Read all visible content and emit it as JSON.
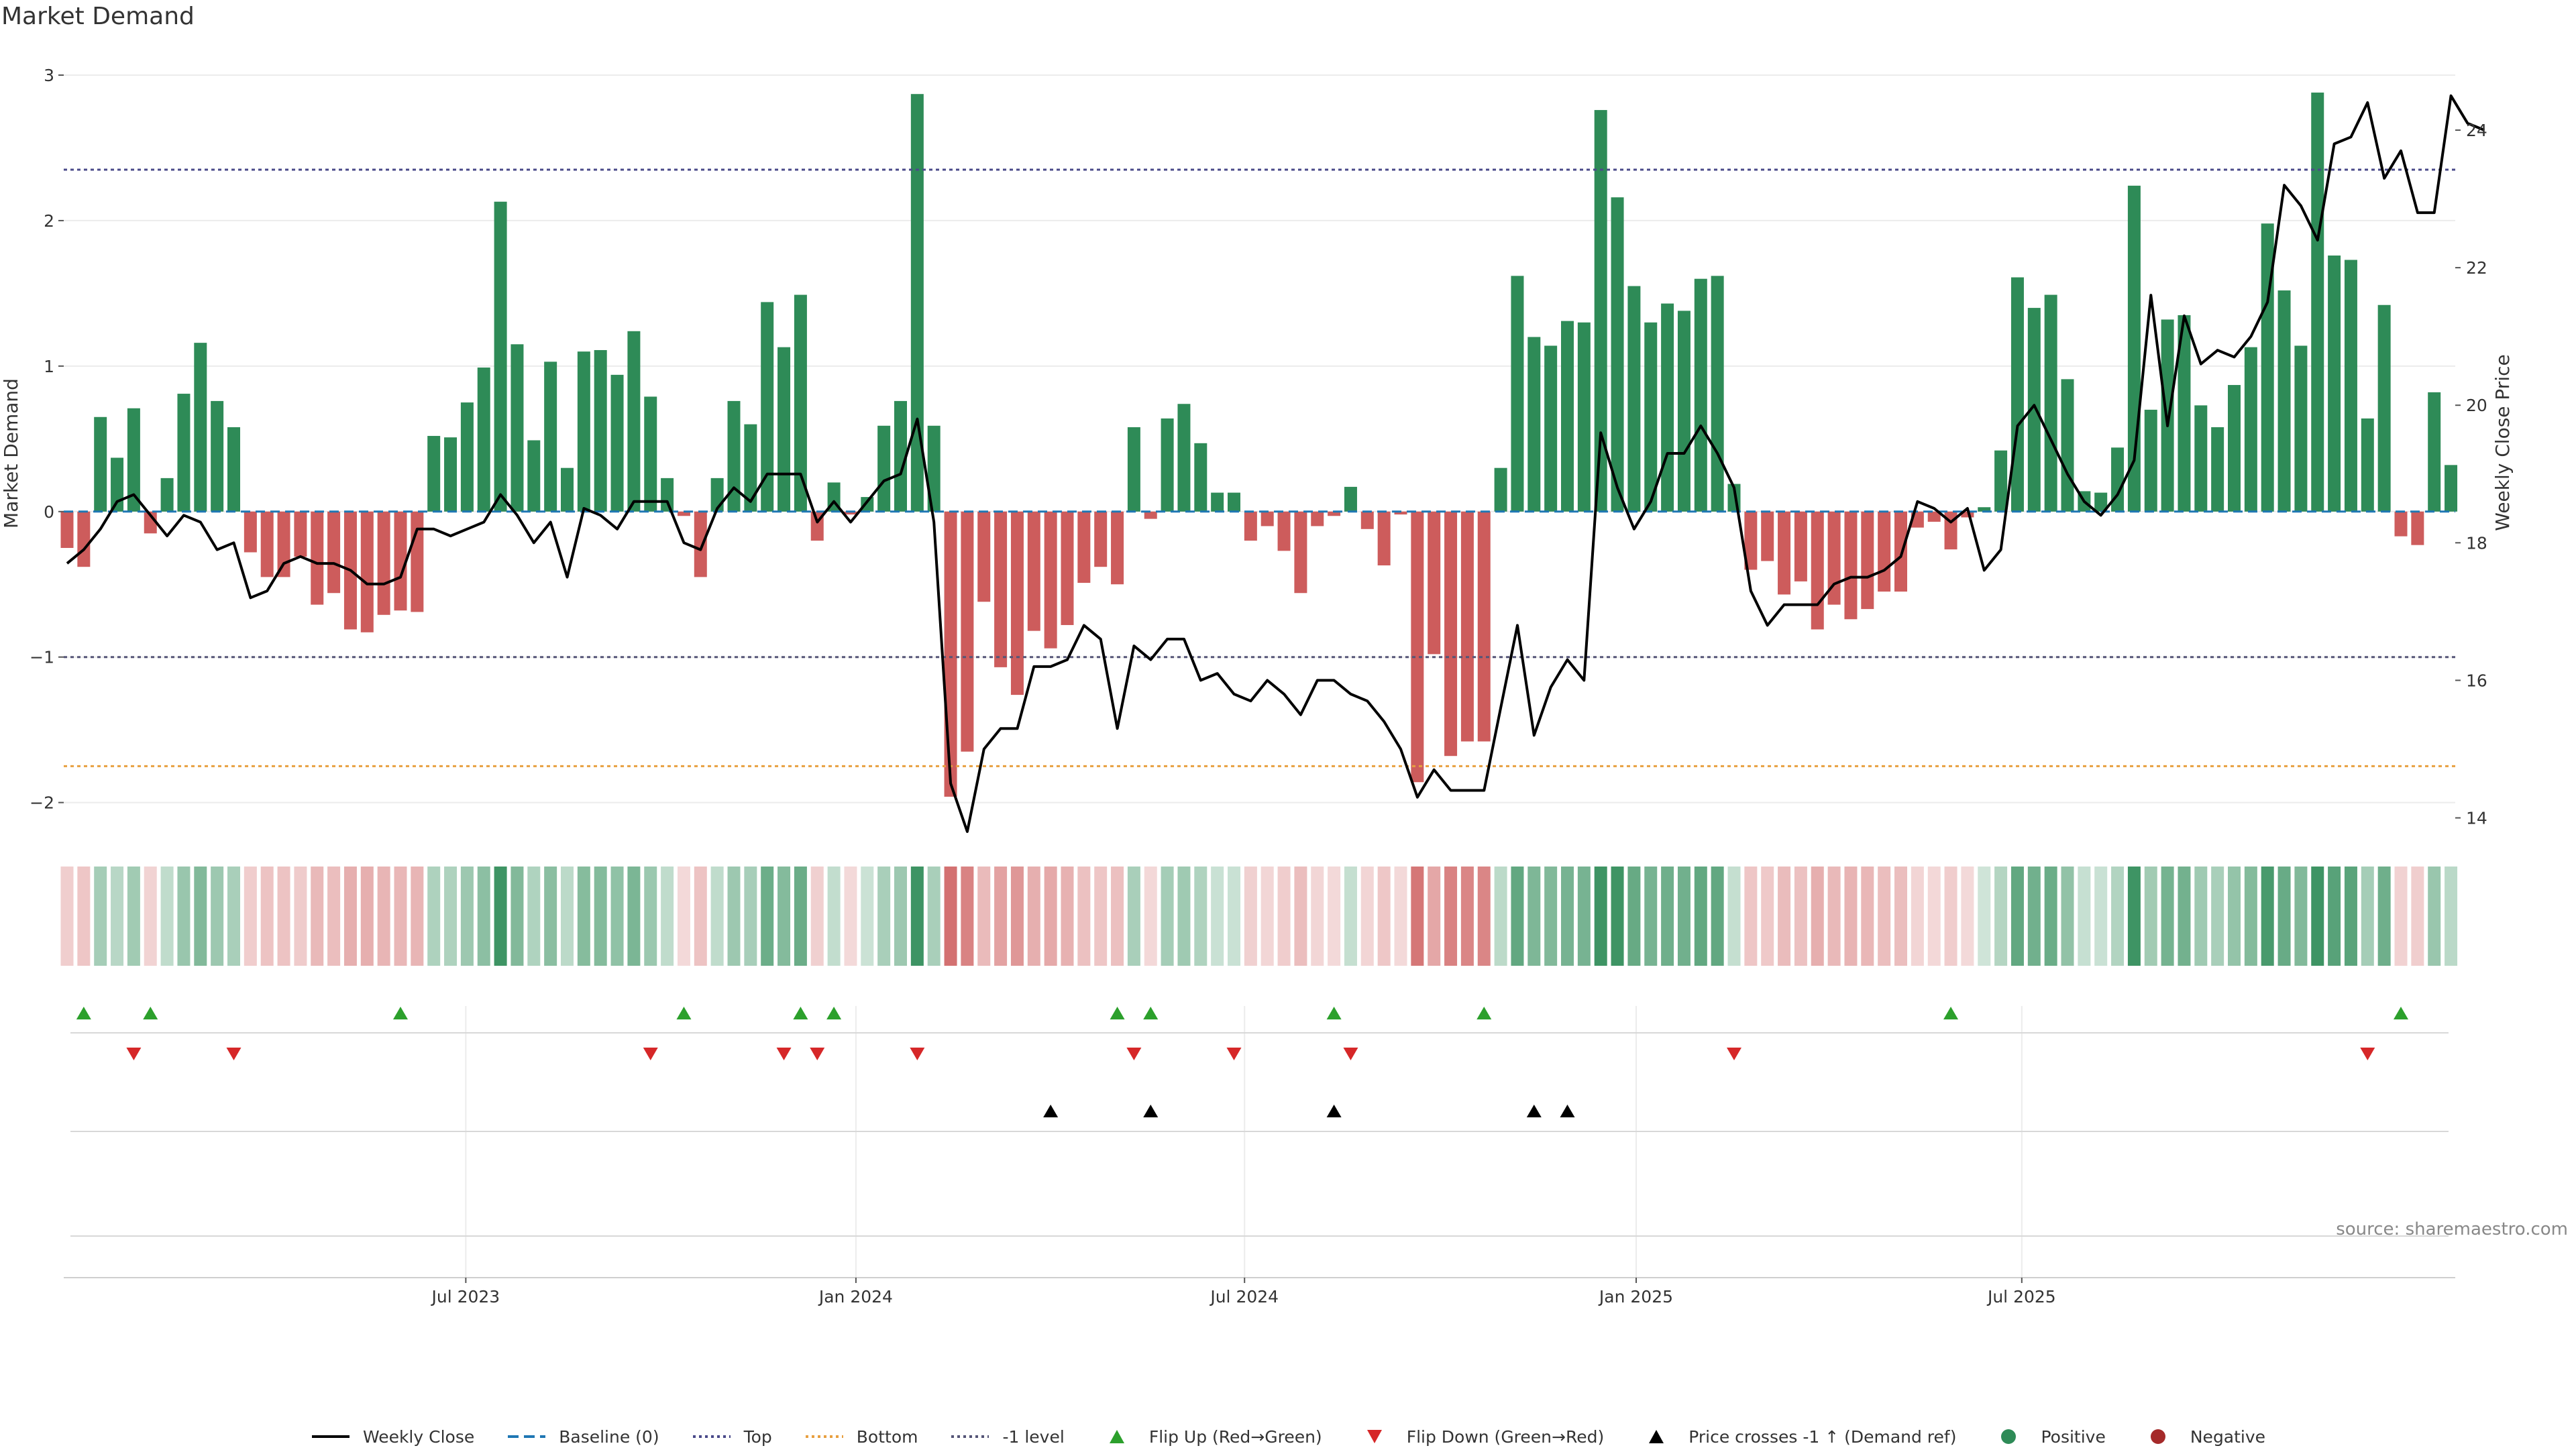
{
  "title": "Market Demand",
  "source_text": "source: sharemaestro.com",
  "colors": {
    "positive": "#2e8b57",
    "negative": "#cd5c5c",
    "price_line": "#000000",
    "top_line": "#4a4a8a",
    "bottom_line": "#e8a040",
    "minus1_line": "#555577",
    "flip_up": "#2ca02c",
    "flip_down": "#d62728",
    "cross_marker": "#000000"
  },
  "legend": [
    {
      "label": "Weekly Close",
      "kind": "line",
      "color": "#000000"
    },
    {
      "label": "Baseline (0)",
      "kind": "dash",
      "color": "#1f77b4"
    },
    {
      "label": "Top",
      "kind": "dot",
      "color": "#4a4a8a"
    },
    {
      "label": "Bottom",
      "kind": "dot",
      "color": "#e8a040"
    },
    {
      "label": "-1 level",
      "kind": "dot",
      "color": "#555577"
    },
    {
      "label": "Flip Up (Red→Green)",
      "kind": "tri-up",
      "color": "#2ca02c"
    },
    {
      "label": "Flip Down (Green→Red)",
      "kind": "tri-down",
      "color": "#d62728"
    },
    {
      "label": "Price crosses -1 ↑ (Demand ref)",
      "kind": "tri-up",
      "color": "#000000"
    },
    {
      "label": "Positive",
      "kind": "circle",
      "color": "#2e8b57"
    },
    {
      "label": "Negative",
      "kind": "circle",
      "color": "#a52a2a"
    }
  ],
  "chart_data": {
    "type": "bar",
    "title": "Market Demand",
    "ylabel": "Market Demand",
    "y2label": "Weekly Close Price",
    "ylim": [
      -2.2,
      3.0
    ],
    "y2lim": [
      13.8,
      24.8
    ],
    "yticks": [
      3,
      2,
      1,
      0,
      -1,
      -2
    ],
    "ytick_labels": [
      "3",
      "2",
      "1",
      "0",
      "−1",
      "−2"
    ],
    "y2ticks": [
      24,
      22,
      20,
      18,
      16,
      14
    ],
    "y2tick_labels": [
      "24",
      "22",
      "20",
      "18",
      "16",
      "14"
    ],
    "top_level": 2.35,
    "bottom_level": -1.75,
    "minus1_level": -1,
    "x_months": [
      -5,
      155
    ],
    "xticks": [
      {
        "label": "Jul 2023",
        "pos": 21.9
      },
      {
        "label": "Jan 2024",
        "pos": 48.0
      },
      {
        "label": "Jul 2024",
        "pos": 74.0
      },
      {
        "label": "Jan 2025",
        "pos": 100.2
      },
      {
        "label": "Jul 2025",
        "pos": 126.0
      }
    ],
    "demand": [
      -0.25,
      -0.38,
      0.65,
      0.37,
      0.71,
      -0.15,
      0.23,
      0.81,
      1.16,
      0.76,
      0.58,
      -0.28,
      -0.45,
      -0.45,
      -0.31,
      -0.64,
      -0.56,
      -0.81,
      -0.83,
      -0.71,
      -0.68,
      -0.69,
      0.52,
      0.51,
      0.75,
      0.99,
      2.13,
      1.15,
      0.49,
      1.03,
      0.3,
      1.1,
      1.11,
      0.94,
      1.24,
      0.79,
      0.23,
      -0.03,
      -0.45,
      0.23,
      0.76,
      0.6,
      1.44,
      1.13,
      1.49,
      -0.2,
      0.2,
      -0.02,
      0.1,
      0.59,
      0.76,
      2.87,
      0.59,
      -1.96,
      -1.65,
      -0.62,
      -1.07,
      -1.26,
      -0.82,
      -0.94,
      -0.78,
      -0.49,
      -0.38,
      -0.5,
      0.58,
      -0.05,
      0.64,
      0.74,
      0.47,
      0.13,
      0.13,
      -0.2,
      -0.1,
      -0.27,
      -0.56,
      -0.1,
      -0.03,
      0.17,
      -0.12,
      -0.37,
      -0.02,
      -1.86,
      -0.98,
      -1.68,
      -1.58,
      -1.58,
      0.3,
      1.62,
      1.2,
      1.14,
      1.31,
      1.3,
      2.76,
      2.16,
      1.55,
      1.3,
      1.43,
      1.38,
      1.6,
      1.62,
      0.19,
      -0.4,
      -0.34,
      -0.57,
      -0.48,
      -0.81,
      -0.64,
      -0.74,
      -0.67,
      -0.55,
      -0.55,
      -0.11,
      -0.07,
      -0.26,
      -0.04,
      0.03,
      0.42,
      1.61,
      1.4,
      1.49,
      0.91,
      0.14,
      0.13,
      0.44,
      2.24,
      0.7,
      1.32,
      1.35,
      0.73,
      0.58,
      0.87,
      1.13,
      1.98,
      1.52,
      1.14,
      2.88,
      1.76,
      1.73,
      0.64,
      1.42,
      -0.17,
      -0.23,
      0.82,
      0.32
    ],
    "price": [
      17.7,
      17.9,
      18.2,
      18.6,
      18.7,
      18.4,
      18.1,
      18.4,
      18.3,
      17.9,
      18.0,
      17.2,
      17.3,
      17.7,
      17.8,
      17.7,
      17.7,
      17.6,
      17.4,
      17.4,
      17.5,
      18.2,
      18.2,
      18.1,
      18.2,
      18.3,
      18.7,
      18.4,
      18.0,
      18.3,
      17.5,
      18.5,
      18.4,
      18.2,
      18.6,
      18.6,
      18.6,
      18.0,
      17.9,
      18.5,
      18.8,
      18.6,
      19.0,
      19.0,
      19.0,
      18.3,
      18.6,
      18.3,
      18.6,
      18.9,
      19.0,
      19.8,
      18.3,
      14.5,
      13.8,
      15.0,
      15.3,
      15.3,
      16.2,
      16.2,
      16.3,
      16.8,
      16.6,
      15.3,
      16.5,
      16.3,
      16.6,
      16.6,
      16.0,
      16.1,
      15.8,
      15.7,
      16.0,
      15.8,
      15.5,
      16.0,
      16.0,
      15.8,
      15.7,
      15.4,
      15.0,
      14.3,
      14.7,
      14.4,
      14.4,
      14.4,
      15.6,
      16.8,
      15.2,
      15.9,
      16.3,
      16.0,
      19.6,
      18.8,
      18.2,
      18.6,
      19.3,
      19.3,
      19.7,
      19.3,
      18.8,
      17.3,
      16.8,
      17.1,
      17.1,
      17.1,
      17.4,
      17.5,
      17.5,
      17.6,
      17.8,
      18.6,
      18.5,
      18.3,
      18.5,
      17.6,
      17.9,
      19.7,
      20.0,
      19.5,
      19.0,
      18.6,
      18.4,
      18.7,
      19.2,
      21.6,
      19.7,
      21.3,
      20.6,
      20.8,
      20.7,
      21.0,
      21.5,
      23.2,
      22.9,
      22.4,
      23.8,
      23.9,
      24.4,
      23.3,
      23.7,
      22.8,
      22.8,
      24.5,
      24.1,
      24.0
    ],
    "flip_up_idx": [
      1,
      5,
      20,
      37,
      44,
      46,
      63,
      65,
      76,
      85,
      113,
      140
    ],
    "flip_down_idx": [
      4,
      10,
      35,
      43,
      45,
      51,
      64,
      70,
      77,
      100,
      138
    ],
    "cross_up_idx": [
      59,
      65,
      76,
      88,
      90
    ]
  }
}
